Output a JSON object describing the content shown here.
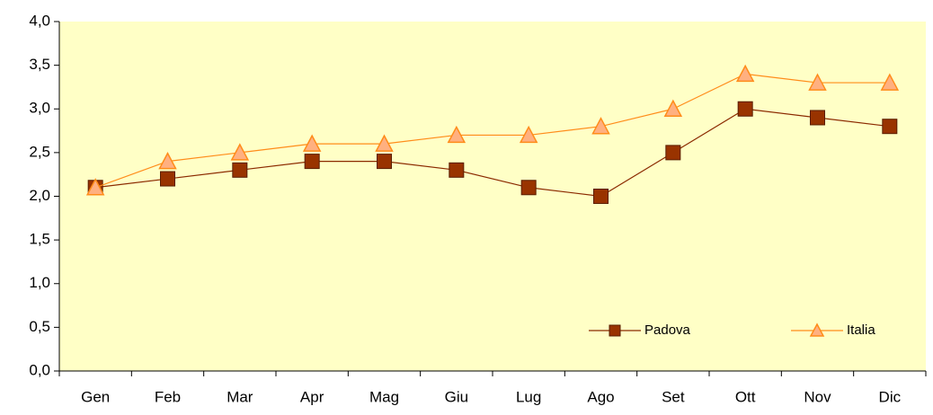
{
  "chart_data": {
    "type": "line",
    "categories": [
      "Gen",
      "Feb",
      "Mar",
      "Apr",
      "Mag",
      "Giu",
      "Lug",
      "Ago",
      "Set",
      "Ott",
      "Nov",
      "Dic"
    ],
    "series": [
      {
        "name": "Padova",
        "color": "#993300",
        "marker": "square",
        "values": [
          2.1,
          2.2,
          2.3,
          2.4,
          2.4,
          2.3,
          2.1,
          2.0,
          2.5,
          3.0,
          2.9,
          2.8
        ]
      },
      {
        "name": "Italia",
        "color": "#ff8c1a",
        "marker": "triangle",
        "values": [
          2.1,
          2.4,
          2.5,
          2.6,
          2.6,
          2.7,
          2.7,
          2.8,
          3.0,
          3.4,
          3.3,
          3.3
        ]
      }
    ],
    "ylim": [
      0,
      4
    ],
    "yticks": [
      {
        "value": 0,
        "label": "0,0"
      },
      {
        "value": 0.5,
        "label": "0,5"
      },
      {
        "value": 1,
        "label": "1,0"
      },
      {
        "value": 1.5,
        "label": "1,5"
      },
      {
        "value": 2,
        "label": "2,0"
      },
      {
        "value": 2.5,
        "label": "2,5"
      },
      {
        "value": 3,
        "label": "3,0"
      },
      {
        "value": 3.5,
        "label": "3,5"
      },
      {
        "value": 4,
        "label": "4,0"
      }
    ],
    "legend": "lower right",
    "plot_background": "#ffffc6"
  }
}
